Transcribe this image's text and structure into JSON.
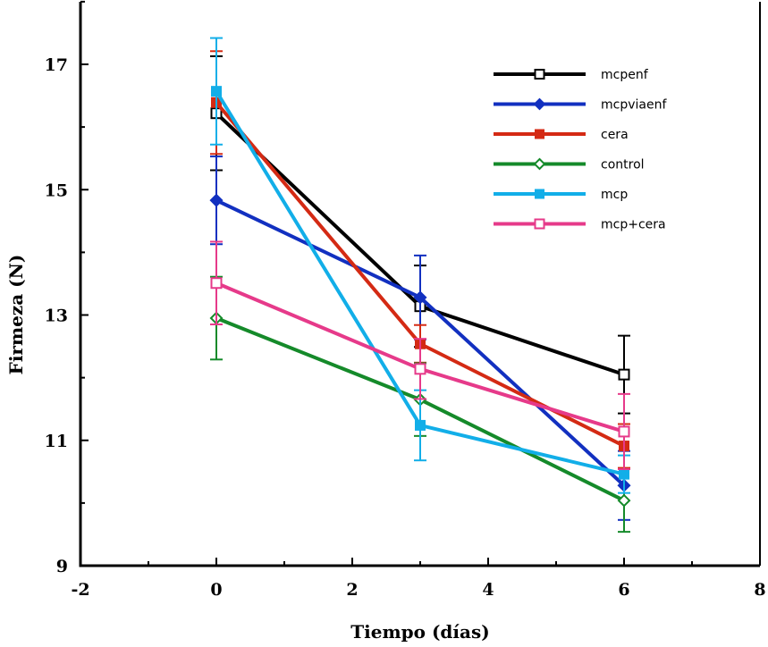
{
  "chart_data": {
    "type": "line",
    "title": "",
    "xlabel": "Tiempo (días)",
    "ylabel": "Firmeza (N)",
    "xlim": [
      -2,
      8
    ],
    "ylim": [
      9,
      18
    ],
    "x_ticks": [
      -2,
      0,
      2,
      4,
      6,
      8
    ],
    "x_tick_labels": [
      "-2",
      "0",
      "2",
      "4",
      "6",
      "8"
    ],
    "y_ticks": [
      9,
      11,
      13,
      15,
      17
    ],
    "y_tick_labels": [
      "9",
      "11",
      "13",
      "15",
      "17"
    ],
    "grid": false,
    "legend_position": "top-right",
    "x": [
      0,
      3,
      6
    ],
    "series": [
      {
        "name": "mcpenf",
        "color": "#000000",
        "marker": "open-square",
        "values": [
          16.22,
          13.14,
          12.05
        ],
        "error": [
          0.91,
          0.65,
          0.62
        ]
      },
      {
        "name": "mcpviaenf",
        "color": "#1230c0",
        "marker": "filled-diamond",
        "values": [
          14.83,
          13.28,
          10.28
        ],
        "error": [
          0.7,
          0.67,
          0.55
        ]
      },
      {
        "name": "cera",
        "color": "#d42a14",
        "marker": "filled-square",
        "values": [
          16.39,
          12.54,
          10.91
        ],
        "error": [
          0.82,
          0.3,
          0.35
        ]
      },
      {
        "name": "control",
        "color": "#158a2a",
        "marker": "open-diamond",
        "values": [
          12.95,
          11.65,
          10.04
        ],
        "error": [
          0.66,
          0.58,
          0.5
        ]
      },
      {
        "name": "mcp",
        "color": "#12aee8",
        "marker": "filled-square",
        "values": [
          16.57,
          11.24,
          10.46
        ],
        "error": [
          0.85,
          0.56,
          0.3
        ]
      },
      {
        "name": "mcp+cera",
        "color": "#e63a8a",
        "marker": "open-square",
        "values": [
          13.51,
          12.14,
          11.14
        ],
        "error": [
          0.66,
          0.48,
          0.6
        ]
      }
    ]
  }
}
